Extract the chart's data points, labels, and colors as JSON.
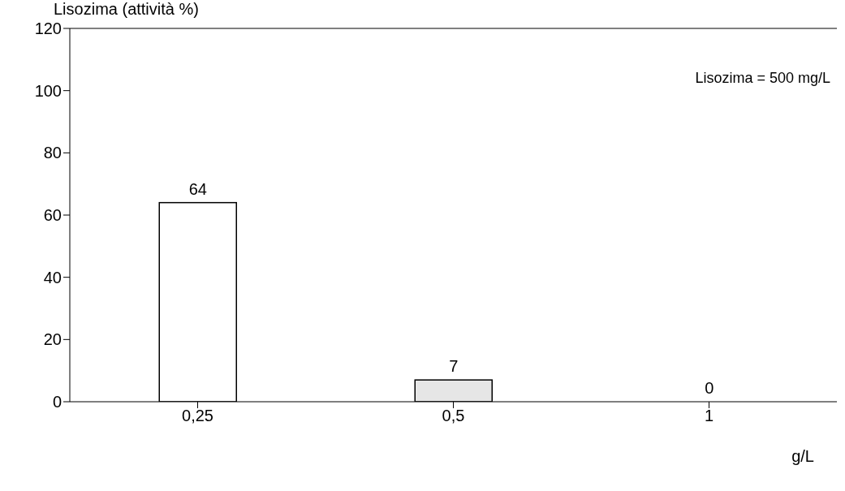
{
  "chart_data": {
    "type": "bar",
    "ylabel": "Lisozima (attività %)",
    "xlabel": "g/L",
    "categories": [
      "0,25",
      "0,5",
      "1"
    ],
    "values": [
      64,
      7,
      0
    ],
    "colors": [
      "#ffffff",
      "#e6e6e6",
      "#ffffff"
    ],
    "ylim": [
      0,
      120
    ],
    "yticks": [
      0,
      20,
      40,
      60,
      80,
      100,
      120
    ],
    "data_labels": true,
    "grid": false,
    "annotations": [
      "Lisozima = 500 mg/L"
    ]
  }
}
